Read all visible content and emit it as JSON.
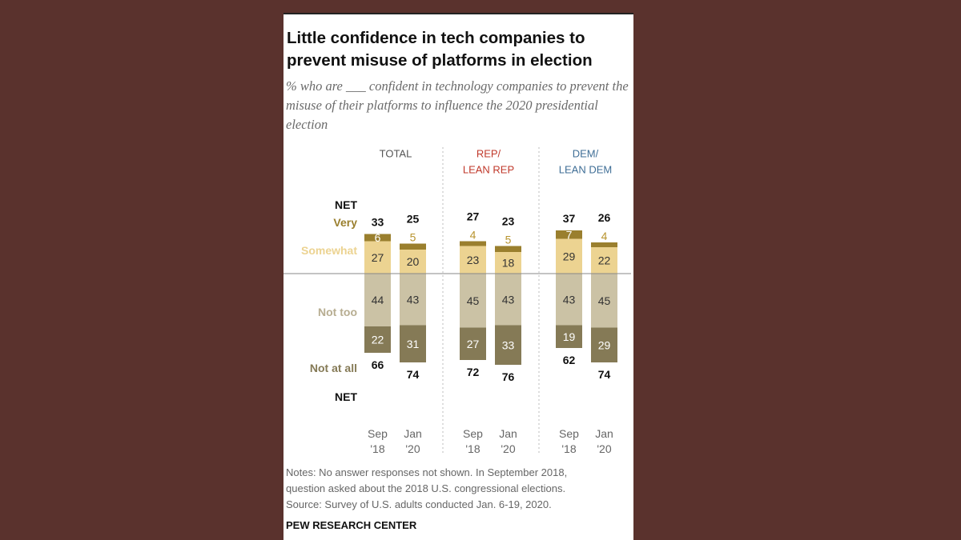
{
  "title": "Little confidence in tech companies to prevent misuse of platforms in election",
  "subtitle": "% who are ___ confident in technology companies to prevent the misuse of their platforms to influence the 2020 presidential election",
  "row_labels": {
    "net_top": "NET",
    "very": "Very",
    "somewhat": "Somewhat",
    "not_too": "Not too",
    "not_at_all": "Not at all",
    "net_bottom": "NET"
  },
  "colors": {
    "very": "#9a7f2e",
    "somewhat": "#ecd391",
    "not_too": "#cbc2a5",
    "not_at_all": "#857a56",
    "rep": "#c0392b",
    "dem": "#3f6e96"
  },
  "chart_data": {
    "type": "bar",
    "subtype": "diverging-stacked",
    "groups": [
      {
        "label": [
          "TOTAL"
        ],
        "color_key": "neutral"
      },
      {
        "label": [
          "REP/",
          "LEAN REP"
        ],
        "color_key": "rep"
      },
      {
        "label": [
          "DEM/",
          "LEAN DEM"
        ],
        "color_key": "dem"
      }
    ],
    "bars": [
      {
        "group": 0,
        "period": [
          "Sep",
          "'18"
        ],
        "very": 6,
        "somewhat": 27,
        "not_too": 44,
        "not_at_all": 22,
        "net_confident": 33,
        "net_not": 66
      },
      {
        "group": 0,
        "period": [
          "Jan",
          "'20"
        ],
        "very": 5,
        "somewhat": 20,
        "not_too": 43,
        "not_at_all": 31,
        "net_confident": 25,
        "net_not": 74
      },
      {
        "group": 1,
        "period": [
          "Sep",
          "'18"
        ],
        "very": 4,
        "somewhat": 23,
        "not_too": 45,
        "not_at_all": 27,
        "net_confident": 27,
        "net_not": 72
      },
      {
        "group": 1,
        "period": [
          "Jan",
          "'20"
        ],
        "very": 5,
        "somewhat": 18,
        "not_too": 43,
        "not_at_all": 33,
        "net_confident": 23,
        "net_not": 76
      },
      {
        "group": 2,
        "period": [
          "Sep",
          "'18"
        ],
        "very": 7,
        "somewhat": 29,
        "not_too": 43,
        "not_at_all": 19,
        "net_confident": 37,
        "net_not": 62
      },
      {
        "group": 2,
        "period": [
          "Jan",
          "'20"
        ],
        "very": 4,
        "somewhat": 22,
        "not_too": 45,
        "not_at_all": 29,
        "net_confident": 26,
        "net_not": 74
      }
    ]
  },
  "notes": [
    "Notes: No answer responses not shown. In September 2018,",
    "question asked about the 2018 U.S. congressional elections.",
    "Source: Survey of U.S. adults conducted Jan. 6-19, 2020."
  ],
  "source": "PEW RESEARCH CENTER"
}
